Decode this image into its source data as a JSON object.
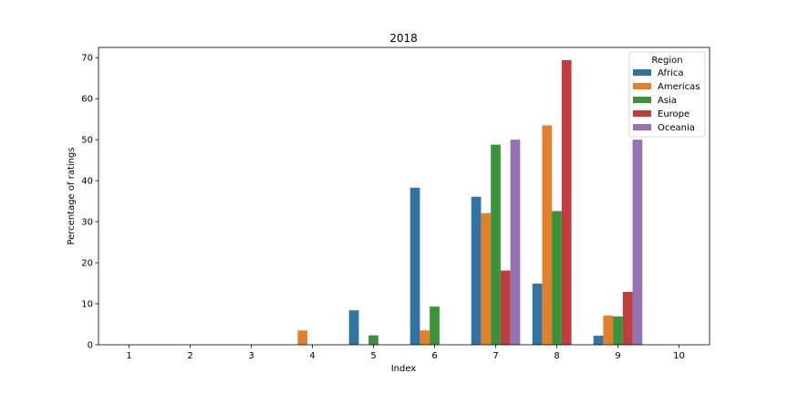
{
  "chart_data": {
    "type": "bar",
    "title": "2018",
    "xlabel": "Index",
    "ylabel": "Percentage of ratings",
    "categories": [
      "1",
      "2",
      "3",
      "4",
      "5",
      "6",
      "7",
      "8",
      "9",
      "10"
    ],
    "ylim": [
      0,
      72.5
    ],
    "yticks": [
      0,
      10,
      20,
      30,
      40,
      50,
      60,
      70
    ],
    "grid": false,
    "legend": {
      "title": "Region",
      "placement": "top-right"
    },
    "series": [
      {
        "name": "Africa",
        "color": "#3274a1",
        "values": [
          0,
          0,
          0,
          0,
          8.4,
          38.3,
          36.1,
          14.9,
          2.2,
          0
        ]
      },
      {
        "name": "Americas",
        "color": "#e1812c",
        "values": [
          0,
          0,
          0,
          3.5,
          0,
          3.5,
          32.1,
          53.5,
          7.1,
          0
        ]
      },
      {
        "name": "Asia",
        "color": "#3a923a",
        "values": [
          0,
          0,
          0,
          0,
          2.3,
          9.3,
          48.8,
          32.6,
          6.9,
          0
        ]
      },
      {
        "name": "Europe",
        "color": "#c03d3e",
        "values": [
          0,
          0,
          0,
          0,
          0,
          0,
          18.1,
          69.4,
          12.9,
          0
        ]
      },
      {
        "name": "Oceania",
        "color": "#9372b2",
        "values": [
          0,
          0,
          0,
          0,
          0,
          0,
          50.0,
          0,
          50.0,
          0
        ]
      }
    ]
  }
}
